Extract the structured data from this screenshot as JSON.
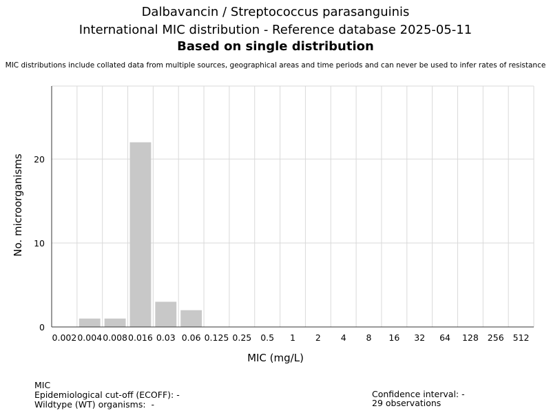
{
  "header": {
    "title_line1": "Dalbavancin / Streptococcus parasanguinis",
    "title_line2": "International MIC distribution - Reference database 2025-05-11",
    "title_line3": "Based on single distribution",
    "subtitle": "MIC distributions include collated data from multiple sources, geographical areas and time periods and can never be used to infer rates of resistance"
  },
  "chart_data": {
    "type": "bar",
    "xlabel": "MIC (mg/L)",
    "ylabel": "No. microorganisms",
    "categories": [
      "0.002",
      "0.004",
      "0.008",
      "0.016",
      "0.03",
      "0.06",
      "0.125",
      "0.25",
      "0.5",
      "1",
      "2",
      "4",
      "8",
      "16",
      "32",
      "64",
      "128",
      "256",
      "512"
    ],
    "values": [
      0,
      1,
      1,
      22,
      3,
      2,
      0,
      0,
      0,
      0,
      0,
      0,
      0,
      0,
      0,
      0,
      0,
      0,
      0
    ],
    "ylim": [
      0,
      28.7
    ],
    "yticks": [
      0,
      10,
      20
    ],
    "grid": true,
    "bar_color": "#c8c8c8",
    "grid_color": "#d9d9d9"
  },
  "footer": {
    "mic_label": "MIC",
    "ecoff_text": "Epidemiological cut-off (ECOFF): -",
    "wt_text": "Wildtype (WT) organisms:  -",
    "ci_text": "Confidence interval: -",
    "observations_text": "29 observations"
  }
}
